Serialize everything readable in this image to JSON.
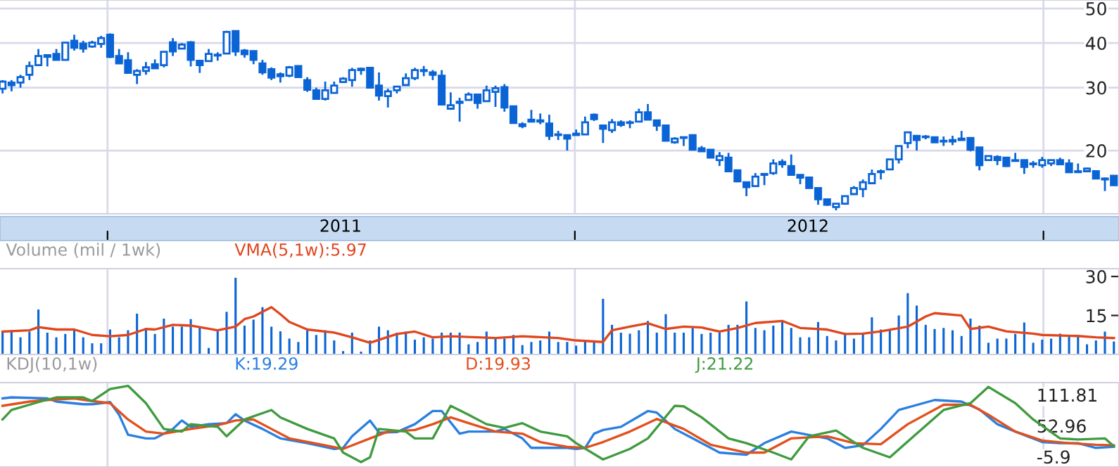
{
  "chart_data": [
    {
      "type": "candlestick",
      "color": "#0a64d6",
      "log": true,
      "grid": true,
      "xlim": [
        "2010-10-09",
        "2013-03-01"
      ],
      "ylim": [
        13.3,
        52.8
      ],
      "yticks": [
        20,
        30,
        40,
        50
      ],
      "xticks": [
        {
          "value": "2011-01-01",
          "label": null
        },
        {
          "value": "2011-07-02",
          "label": "2011"
        },
        {
          "value": "2012-01-01",
          "label": null
        },
        {
          "value": "2012-07-01",
          "label": "2012"
        },
        {
          "value": "2013-01-01",
          "label": null
        }
      ],
      "x": [
        "2010-10-11",
        "2010-10-18",
        "2010-10-25",
        "2010-11-01",
        "2010-11-08",
        "2010-11-15",
        "2010-11-22",
        "2010-11-29",
        "2010-12-06",
        "2010-12-13",
        "2010-12-20",
        "2010-12-27",
        "2011-01-03",
        "2011-01-10",
        "2011-01-17",
        "2011-01-24",
        "2011-01-31",
        "2011-02-07",
        "2011-02-14",
        "2011-02-21",
        "2011-02-28",
        "2011-03-07",
        "2011-03-14",
        "2011-03-21",
        "2011-03-28",
        "2011-04-04",
        "2011-04-11",
        "2011-04-18",
        "2011-04-25",
        "2011-05-02",
        "2011-05-09",
        "2011-05-16",
        "2011-05-23",
        "2011-05-30",
        "2011-06-06",
        "2011-06-13",
        "2011-06-20",
        "2011-06-27",
        "2011-07-04",
        "2011-07-11",
        "2011-07-18",
        "2011-07-25",
        "2011-08-01",
        "2011-08-08",
        "2011-08-15",
        "2011-08-22",
        "2011-08-29",
        "2011-09-05",
        "2011-09-12",
        "2011-09-19",
        "2011-09-26",
        "2011-10-03",
        "2011-10-10",
        "2011-10-17",
        "2011-10-24",
        "2011-10-31",
        "2011-11-07",
        "2011-11-14",
        "2011-11-21",
        "2011-11-28",
        "2011-12-05",
        "2011-12-12",
        "2011-12-19",
        "2011-12-26",
        "2012-01-02",
        "2012-01-09",
        "2012-01-16",
        "2012-01-23",
        "2012-01-30",
        "2012-02-06",
        "2012-02-13",
        "2012-02-20",
        "2012-02-27",
        "2012-03-05",
        "2012-03-12",
        "2012-03-19",
        "2012-03-26",
        "2012-04-02",
        "2012-04-09",
        "2012-04-16",
        "2012-04-23",
        "2012-04-30",
        "2012-05-07",
        "2012-05-14",
        "2012-05-21",
        "2012-05-28",
        "2012-06-04",
        "2012-06-11",
        "2012-06-18",
        "2012-06-25",
        "2012-07-02",
        "2012-07-09",
        "2012-07-16",
        "2012-07-23",
        "2012-07-30",
        "2012-08-06",
        "2012-08-13",
        "2012-08-20",
        "2012-08-27",
        "2012-09-03",
        "2012-09-10",
        "2012-09-17",
        "2012-09-24",
        "2012-10-01",
        "2012-10-08",
        "2012-10-15",
        "2012-10-22",
        "2012-10-29",
        "2012-11-05",
        "2012-11-12",
        "2012-11-19",
        "2012-11-26",
        "2012-12-03",
        "2012-12-10",
        "2012-12-17",
        "2012-12-24",
        "2012-12-31",
        "2013-01-07",
        "2013-01-14",
        "2013-01-21",
        "2013-01-28",
        "2013-02-04",
        "2013-02-11",
        "2013-02-18",
        "2013-02-25"
      ],
      "ohlc": [
        [
          29.8,
          31.5,
          28.9,
          31.2
        ],
        [
          31.0,
          31.5,
          29.3,
          30.5
        ],
        [
          31.0,
          32.6,
          30.0,
          32.1
        ],
        [
          32.6,
          35.5,
          31.5,
          34.5
        ],
        [
          34.7,
          38.5,
          34.7,
          36.8
        ],
        [
          37.0,
          37.0,
          34.4,
          36.6
        ],
        [
          37.3,
          38.5,
          35.9,
          35.9
        ],
        [
          35.9,
          40.1,
          35.9,
          40.1
        ],
        [
          40.6,
          42.2,
          38.1,
          38.8
        ],
        [
          39.9,
          40.6,
          37.6,
          38.6
        ],
        [
          39.1,
          40.6,
          38.8,
          40.1
        ],
        [
          39.8,
          41.9,
          38.8,
          41.3
        ],
        [
          42.2,
          42.6,
          36.3,
          36.6
        ],
        [
          36.8,
          38.5,
          35.1,
          35.1
        ],
        [
          35.8,
          37.7,
          33.0,
          33.0
        ],
        [
          32.6,
          33.8,
          30.7,
          33.4
        ],
        [
          33.4,
          35.4,
          32.6,
          34.2
        ],
        [
          34.9,
          36.0,
          34.0,
          34.0
        ],
        [
          34.7,
          37.8,
          34.2,
          37.8
        ],
        [
          40.2,
          41.3,
          36.8,
          37.9
        ],
        [
          38.6,
          40.0,
          38.6,
          39.6
        ],
        [
          40.2,
          40.5,
          34.4,
          35.9
        ],
        [
          35.7,
          35.9,
          33.0,
          34.7
        ],
        [
          35.6,
          38.5,
          35.6,
          37.3
        ],
        [
          36.9,
          37.7,
          35.7,
          37.1
        ],
        [
          37.4,
          43.3,
          37.4,
          43.0
        ],
        [
          43.2,
          43.2,
          36.8,
          37.9
        ],
        [
          38.1,
          38.5,
          36.4,
          37.2
        ],
        [
          38.0,
          38.0,
          34.9,
          35.9
        ],
        [
          35.1,
          35.9,
          32.6,
          33.1
        ],
        [
          33.8,
          34.2,
          31.5,
          32.0
        ],
        [
          32.7,
          33.1,
          31.0,
          32.3
        ],
        [
          32.4,
          34.5,
          32.1,
          34.2
        ],
        [
          34.5,
          34.5,
          32.1,
          32.1
        ],
        [
          31.5,
          32.1,
          29.2,
          29.6
        ],
        [
          29.5,
          30.0,
          27.9,
          27.9
        ],
        [
          27.9,
          31.2,
          27.6,
          29.5
        ],
        [
          29.0,
          31.2,
          29.0,
          30.4
        ],
        [
          31.1,
          32.1,
          30.9,
          31.8
        ],
        [
          31.5,
          34.1,
          30.2,
          33.6
        ],
        [
          33.6,
          34.1,
          32.6,
          33.9
        ],
        [
          34.1,
          34.1,
          30.0,
          30.0
        ],
        [
          30.4,
          33.1,
          27.6,
          28.5
        ],
        [
          28.4,
          29.8,
          26.4,
          29.3
        ],
        [
          29.5,
          30.2,
          28.9,
          30.2
        ],
        [
          30.5,
          32.9,
          30.5,
          31.9
        ],
        [
          31.9,
          34.1,
          31.5,
          33.6
        ],
        [
          33.4,
          34.5,
          32.3,
          33.6
        ],
        [
          33.1,
          33.6,
          31.5,
          32.6
        ],
        [
          32.4,
          33.6,
          26.9,
          26.9
        ],
        [
          26.2,
          29.1,
          26.0,
          26.8
        ],
        [
          27.4,
          28.1,
          24.1,
          27.2
        ],
        [
          27.7,
          29.1,
          27.7,
          28.7
        ],
        [
          28.7,
          28.7,
          26.2,
          27.2
        ],
        [
          27.5,
          30.4,
          27.5,
          29.5
        ],
        [
          29.2,
          30.4,
          26.5,
          29.9
        ],
        [
          30.1,
          30.7,
          25.7,
          26.4
        ],
        [
          26.6,
          26.6,
          23.9,
          23.9
        ],
        [
          23.7,
          24.0,
          23.1,
          23.4
        ],
        [
          24.4,
          26.0,
          24.0,
          24.1
        ],
        [
          24.3,
          25.4,
          23.7,
          24.1
        ],
        [
          23.8,
          25.2,
          21.4,
          22.0
        ],
        [
          22.1,
          22.7,
          21.4,
          22.2
        ],
        [
          22.1,
          22.1,
          20.0,
          21.6
        ],
        [
          22.1,
          22.9,
          22.1,
          22.3
        ],
        [
          22.2,
          24.9,
          22.2,
          24.0
        ],
        [
          25.2,
          25.4,
          24.2,
          24.5
        ],
        [
          23.5,
          23.5,
          21.0,
          23.0
        ],
        [
          22.8,
          24.5,
          22.4,
          24.0
        ],
        [
          24.0,
          24.3,
          23.3,
          23.6
        ],
        [
          24.0,
          24.3,
          23.1,
          23.9
        ],
        [
          24.1,
          26.2,
          24.1,
          25.6
        ],
        [
          25.6,
          27.0,
          24.3,
          24.4
        ],
        [
          24.3,
          24.3,
          22.7,
          23.5
        ],
        [
          23.5,
          23.5,
          21.3,
          21.3
        ],
        [
          21.1,
          21.8,
          20.9,
          21.6
        ],
        [
          21.8,
          21.8,
          20.6,
          21.7
        ],
        [
          22.1,
          22.1,
          20.1,
          20.1
        ],
        [
          20.3,
          20.6,
          19.9,
          19.9
        ],
        [
          20.1,
          20.1,
          19.1,
          19.1
        ],
        [
          18.8,
          19.8,
          18.1,
          19.3
        ],
        [
          19.1,
          19.7,
          17.4,
          17.5
        ],
        [
          17.6,
          17.6,
          16.3,
          16.4
        ],
        [
          16.3,
          16.3,
          14.9,
          15.8
        ],
        [
          15.9,
          17.3,
          15.9,
          16.9
        ],
        [
          17.1,
          17.3,
          16.0,
          17.2
        ],
        [
          17.3,
          18.9,
          17.1,
          18.4
        ],
        [
          18.6,
          18.9,
          17.9,
          18.3
        ],
        [
          18.1,
          19.5,
          17.1,
          17.1
        ],
        [
          17.1,
          17.1,
          16.1,
          16.8
        ],
        [
          16.8,
          16.9,
          15.7,
          15.7
        ],
        [
          15.7,
          15.7,
          14.1,
          14.6
        ],
        [
          14.6,
          14.6,
          14.0,
          14.1
        ],
        [
          13.9,
          14.2,
          13.6,
          14.2
        ],
        [
          14.2,
          14.9,
          14.1,
          14.9
        ],
        [
          15.1,
          15.9,
          15.1,
          15.7
        ],
        [
          15.6,
          16.6,
          14.8,
          16.3
        ],
        [
          16.2,
          17.7,
          16.2,
          17.2
        ],
        [
          17.4,
          17.7,
          16.6,
          17.5
        ],
        [
          17.7,
          18.9,
          17.7,
          18.9
        ],
        [
          18.9,
          20.6,
          18.4,
          20.6
        ],
        [
          21.0,
          22.5,
          20.3,
          22.5
        ],
        [
          22.0,
          22.0,
          20.0,
          21.4
        ],
        [
          21.9,
          22.1,
          21.5,
          21.8
        ],
        [
          21.8,
          21.8,
          21.1,
          21.1
        ],
        [
          21.3,
          21.9,
          20.6,
          21.2
        ],
        [
          21.2,
          22.0,
          20.7,
          21.4
        ],
        [
          21.4,
          22.7,
          21.4,
          21.6
        ],
        [
          21.7,
          21.8,
          19.9,
          20.1
        ],
        [
          20.4,
          20.4,
          17.6,
          18.2
        ],
        [
          18.8,
          19.3,
          18.7,
          19.3
        ],
        [
          19.2,
          19.4,
          18.2,
          18.8
        ],
        [
          19.1,
          19.1,
          18.0,
          18.1
        ],
        [
          18.8,
          19.7,
          18.7,
          18.7
        ],
        [
          18.8,
          18.8,
          17.2,
          18.0
        ],
        [
          18.3,
          18.7,
          17.9,
          18.4
        ],
        [
          18.2,
          19.2,
          17.9,
          18.8
        ],
        [
          18.4,
          18.8,
          18.1,
          18.8
        ],
        [
          18.8,
          19.1,
          18.3,
          18.3
        ],
        [
          18.4,
          18.9,
          17.4,
          17.4
        ],
        [
          17.5,
          18.4,
          17.3,
          17.4
        ],
        [
          17.5,
          17.9,
          17.4,
          17.8
        ],
        [
          17.5,
          17.5,
          16.7,
          16.7
        ],
        [
          16.7,
          16.8,
          15.4,
          16.6
        ],
        [
          17.0,
          17.0,
          16.0,
          16.0
        ]
      ]
    },
    {
      "type": "bar",
      "title": "Volume (mil / 1wk)",
      "grid": "x",
      "tick_labels": "y",
      "xlim": [
        "2010-10-09",
        "2013-03-01"
      ],
      "ylim": [
        0,
        33
      ],
      "yticks": [
        30,
        15
      ],
      "xticks": [
        {
          "value": "2011-01-01",
          "label": null
        },
        {
          "value": "2012-01-01",
          "label": null
        },
        {
          "value": "2013-01-01",
          "label": null
        }
      ],
      "x": [
        "2010-10-11",
        "2010-10-18",
        "2010-10-25",
        "2010-11-01",
        "2010-11-08",
        "2010-11-15",
        "2010-11-22",
        "2010-11-29",
        "2010-12-06",
        "2010-12-13",
        "2010-12-20",
        "2010-12-27",
        "2011-01-03",
        "2011-01-10",
        "2011-01-17",
        "2011-01-24",
        "2011-01-31",
        "2011-02-07",
        "2011-02-14",
        "2011-02-21",
        "2011-02-28",
        "2011-03-07",
        "2011-03-14",
        "2011-03-21",
        "2011-03-28",
        "2011-04-04",
        "2011-04-11",
        "2011-04-18",
        "2011-04-25",
        "2011-05-02",
        "2011-05-09",
        "2011-05-16",
        "2011-05-23",
        "2011-05-30",
        "2011-06-06",
        "2011-06-13",
        "2011-06-20",
        "2011-06-27",
        "2011-07-04",
        "2011-07-11",
        "2011-07-18",
        "2011-07-25",
        "2011-08-01",
        "2011-08-08",
        "2011-08-15",
        "2011-08-22",
        "2011-08-29",
        "2011-09-05",
        "2011-09-12",
        "2011-09-19",
        "2011-09-26",
        "2011-10-03",
        "2011-10-10",
        "2011-10-17",
        "2011-10-24",
        "2011-10-31",
        "2011-11-07",
        "2011-11-14",
        "2011-11-21",
        "2011-11-28",
        "2011-12-05",
        "2011-12-12",
        "2011-12-19",
        "2011-12-26",
        "2012-01-02",
        "2012-01-09",
        "2012-01-16",
        "2012-01-23",
        "2012-01-30",
        "2012-02-06",
        "2012-02-13",
        "2012-02-20",
        "2012-02-27",
        "2012-03-05",
        "2012-03-12",
        "2012-03-19",
        "2012-03-26",
        "2012-04-02",
        "2012-04-09",
        "2012-04-16",
        "2012-04-23",
        "2012-04-30",
        "2012-05-07",
        "2012-05-14",
        "2012-05-21",
        "2012-05-28",
        "2012-06-04",
        "2012-06-11",
        "2012-06-18",
        "2012-06-25",
        "2012-07-02",
        "2012-07-09",
        "2012-07-16",
        "2012-07-23",
        "2012-07-30",
        "2012-08-06",
        "2012-08-13",
        "2012-08-20",
        "2012-08-27",
        "2012-09-03",
        "2012-09-10",
        "2012-09-17",
        "2012-09-24",
        "2012-10-01",
        "2012-10-08",
        "2012-10-15",
        "2012-10-22",
        "2012-10-29",
        "2012-11-05",
        "2012-11-12",
        "2012-11-19",
        "2012-11-26",
        "2012-12-03",
        "2012-12-10",
        "2012-12-17",
        "2012-12-24",
        "2012-12-31",
        "2013-01-07",
        "2013-01-14",
        "2013-01-21",
        "2013-01-28",
        "2013-02-04",
        "2013-02-11",
        "2013-02-18",
        "2013-02-25"
      ],
      "series": [
        {
          "type": "bar",
          "color": "#0a64d6",
          "values": [
            8.8,
            9.3,
            6.6,
            8.8,
            17.3,
            8.4,
            6.6,
            7.9,
            9.3,
            6.6,
            4.3,
            4.3,
            9.6,
            6.6,
            9.3,
            15.7,
            10.2,
            7.9,
            13.8,
            10.7,
            10.7,
            13.6,
            10.7,
            2.5,
            9.6,
            16.4,
            29.5,
            11.1,
            13.4,
            18.2,
            10.7,
            8.9,
            6.1,
            4.8,
            9.3,
            7.5,
            9.3,
            5.4,
            1.3,
            8.4,
            1.1,
            5.4,
            10.7,
            9.3,
            8.4,
            8.8,
            5.7,
            6.6,
            6.1,
            8.4,
            8.4,
            8.4,
            3.9,
            4.8,
            8.8,
            6.1,
            6.1,
            7.5,
            3.6,
            4.8,
            5.4,
            8.8,
            4.8,
            4.8,
            3.4,
            5.2,
            5.2,
            21.4,
            11.4,
            8.4,
            8.0,
            9.3,
            12.9,
            8.4,
            15.5,
            8.4,
            8.4,
            10.2,
            7.9,
            8.4,
            8.4,
            11.4,
            11.4,
            20.4,
            10.2,
            9.3,
            11.1,
            13.2,
            10.2,
            6.6,
            6.6,
            12.5,
            7.1,
            5.4,
            8.4,
            6.1,
            8.4,
            14.3,
            9.6,
            9.6,
            15.0,
            23.6,
            18.8,
            11.4,
            9.8,
            10.2,
            9.3,
            7.1,
            13.8,
            11.1,
            4.5,
            6.1,
            6.1,
            7.9,
            12.3,
            4.5,
            5.7,
            6.1,
            8.0,
            7.5,
            7.1,
            3.9,
            5.4,
            8.8,
            5.0
          ]
        },
        {
          "type": "line",
          "name": "VMA(5,1w):5.97",
          "color": "#e0461e",
          "x": [
            "2010-10-11",
            "2010-11-01",
            "2010-11-08",
            "2010-11-22",
            "2010-12-06",
            "2010-12-20",
            "2011-01-03",
            "2011-01-17",
            "2011-01-31",
            "2011-02-07",
            "2011-02-21",
            "2011-03-07",
            "2011-03-14",
            "2011-03-28",
            "2011-04-11",
            "2011-04-18",
            "2011-04-25",
            "2011-05-09",
            "2011-05-16",
            "2011-05-23",
            "2011-06-06",
            "2011-06-27",
            "2011-07-11",
            "2011-07-25",
            "2011-08-15",
            "2011-08-29",
            "2011-09-12",
            "2011-09-26",
            "2011-10-31",
            "2011-11-21",
            "2011-12-19",
            "2012-01-02",
            "2012-01-23",
            "2012-01-30",
            "2012-02-13",
            "2012-02-27",
            "2012-03-12",
            "2012-03-26",
            "2012-04-09",
            "2012-04-23",
            "2012-05-07",
            "2012-05-21",
            "2012-06-11",
            "2012-06-25",
            "2012-07-16",
            "2012-07-30",
            "2012-08-13",
            "2012-08-27",
            "2012-09-17",
            "2012-10-01",
            "2012-10-08",
            "2012-10-29",
            "2012-11-05",
            "2012-11-19",
            "2012-12-03",
            "2012-12-24",
            "2012-12-31",
            "2013-01-28",
            "2013-02-11",
            "2013-02-25"
          ],
          "values": [
            8.8,
            9.3,
            10.5,
            9.6,
            9.6,
            7.5,
            7.0,
            7.5,
            9.8,
            9.6,
            11.4,
            11.1,
            10.5,
            9.3,
            10.7,
            13.6,
            14.6,
            18.2,
            15.5,
            12.5,
            9.6,
            8.4,
            6.6,
            4.5,
            7.9,
            8.8,
            6.6,
            7.0,
            6.3,
            7.0,
            6.3,
            5.4,
            4.8,
            9.3,
            10.7,
            12.0,
            9.8,
            10.7,
            10.4,
            8.8,
            10.2,
            12.1,
            12.9,
            10.2,
            9.6,
            7.9,
            8.0,
            8.9,
            10.7,
            14.6,
            15.9,
            15.0,
            9.8,
            10.7,
            8.9,
            8.0,
            7.5,
            7.1,
            6.6,
            6.3
          ]
        }
      ]
    },
    {
      "type": "line",
      "title": "KDJ(10,1w)",
      "grid": "x",
      "tick_labels": "y",
      "xlim": [
        "2010-10-09",
        "2013-03-01"
      ],
      "ylim": [
        -25.4,
        135.1
      ],
      "yticks": [
        111.81,
        52.96,
        -5.9
      ],
      "xticks": [
        {
          "value": "2011-01-01",
          "label": null
        },
        {
          "value": "2012-01-01",
          "label": null
        },
        {
          "value": "2013-01-01",
          "label": null
        }
      ],
      "series": [
        {
          "name": "K:19.29",
          "color": "#2a7fe0",
          "x": [
            "2010-10-11",
            "2010-10-18",
            "2010-11-15",
            "2010-11-22",
            "2010-12-13",
            "2010-12-20",
            "2011-01-03",
            "2011-01-10",
            "2011-01-17",
            "2011-01-31",
            "2011-02-07",
            "2011-02-21",
            "2011-02-28",
            "2011-03-07",
            "2011-03-21",
            "2011-04-04",
            "2011-04-11",
            "2011-04-18",
            "2011-05-02",
            "2011-05-16",
            "2011-06-06",
            "2011-06-27",
            "2011-07-04",
            "2011-07-11",
            "2011-07-25",
            "2011-08-01",
            "2011-08-15",
            "2011-08-29",
            "2011-09-12",
            "2011-09-19",
            "2011-10-03",
            "2011-10-10",
            "2011-10-31",
            "2011-11-07",
            "2011-11-21",
            "2011-11-28",
            "2011-12-26",
            "2012-01-02",
            "2012-01-09",
            "2012-01-16",
            "2012-01-23",
            "2012-02-06",
            "2012-02-27",
            "2012-03-05",
            "2012-03-19",
            "2012-04-02",
            "2012-04-23",
            "2012-05-14",
            "2012-05-28",
            "2012-06-18",
            "2012-07-16",
            "2012-07-30",
            "2012-08-13",
            "2012-08-27",
            "2012-09-10",
            "2012-10-08",
            "2012-10-29",
            "2012-11-12",
            "2012-11-26",
            "2012-12-10",
            "2012-12-31",
            "2013-01-14",
            "2013-01-28",
            "2013-02-11",
            "2013-02-25"
          ],
          "values": [
            105,
            107,
            105,
            99,
            94,
            94,
            98,
            74,
            36,
            29,
            29,
            47,
            63,
            51,
            56,
            58,
            75,
            63,
            47,
            29,
            20,
            9,
            11,
            33,
            63,
            40,
            41,
            56,
            81,
            81,
            38,
            42,
            42,
            47,
            29,
            11,
            11,
            9,
            11,
            38,
            45,
            51,
            81,
            78,
            47,
            29,
            2,
            -2,
            20,
            42,
            29,
            11,
            16,
            47,
            83,
            102,
            99,
            84,
            56,
            42,
            22,
            20,
            20,
            11,
            13
          ]
        },
        {
          "name": "D:19.93",
          "color": "#e2501c",
          "x": [
            "2010-10-11",
            "2010-11-01",
            "2010-11-15",
            "2010-12-06",
            "2010-12-20",
            "2011-01-03",
            "2011-01-17",
            "2011-01-31",
            "2011-02-14",
            "2011-03-07",
            "2011-03-28",
            "2011-04-11",
            "2011-04-25",
            "2011-05-09",
            "2011-05-23",
            "2011-06-20",
            "2011-07-04",
            "2011-07-25",
            "2011-08-08",
            "2011-08-29",
            "2011-09-12",
            "2011-09-26",
            "2011-10-10",
            "2011-10-31",
            "2011-11-21",
            "2011-12-05",
            "2011-12-26",
            "2012-01-09",
            "2012-01-23",
            "2012-02-13",
            "2012-03-05",
            "2012-03-26",
            "2012-04-16",
            "2012-05-14",
            "2012-05-28",
            "2012-06-18",
            "2012-07-16",
            "2012-08-06",
            "2012-08-27",
            "2012-09-17",
            "2012-10-15",
            "2012-11-05",
            "2012-11-19",
            "2012-12-10",
            "2012-12-31",
            "2013-01-21",
            "2013-02-11",
            "2013-02-25"
          ],
          "values": [
            91,
            99,
            102,
            105,
            100,
            96,
            65,
            42,
            38,
            47,
            54,
            63,
            65,
            47,
            29,
            16,
            9,
            29,
            42,
            45,
            56,
            69,
            58,
            42,
            38,
            22,
            13,
            11,
            22,
            42,
            66,
            47,
            17,
            2,
            2,
            29,
            33,
            20,
            18,
            56,
            93,
            93,
            74,
            42,
            25,
            20,
            17,
            16
          ]
        },
        {
          "name": "J:21.22",
          "color": "#3f9b3f",
          "x": [
            "2010-10-11",
            "2010-10-18",
            "2010-11-08",
            "2010-11-22",
            "2010-12-13",
            "2010-12-20",
            "2011-01-03",
            "2011-01-17",
            "2011-01-31",
            "2011-02-14",
            "2011-02-28",
            "2011-03-07",
            "2011-03-28",
            "2011-04-04",
            "2011-04-18",
            "2011-05-09",
            "2011-05-16",
            "2011-06-06",
            "2011-06-27",
            "2011-07-04",
            "2011-07-18",
            "2011-07-25",
            "2011-08-01",
            "2011-08-22",
            "2011-08-29",
            "2011-09-12",
            "2011-09-26",
            "2011-10-10",
            "2011-10-24",
            "2011-11-07",
            "2011-11-21",
            "2011-12-05",
            "2011-12-26",
            "2012-01-02",
            "2012-01-23",
            "2012-02-13",
            "2012-02-27",
            "2012-03-19",
            "2012-03-26",
            "2012-04-09",
            "2012-04-30",
            "2012-05-14",
            "2012-06-04",
            "2012-06-18",
            "2012-07-02",
            "2012-07-23",
            "2012-08-13",
            "2012-09-03",
            "2012-09-24",
            "2012-10-15",
            "2012-11-05",
            "2012-11-19",
            "2012-12-10",
            "2012-12-24",
            "2013-01-14",
            "2013-01-28",
            "2013-02-18",
            "2013-02-25"
          ],
          "values": [
            65,
            83,
            98,
            107,
            107,
            100,
            123,
            129,
            96,
            47,
            42,
            56,
            51,
            33,
            65,
            83,
            69,
            47,
            29,
            2,
            -16,
            -7,
            47,
            42,
            29,
            29,
            91,
            74,
            56,
            49,
            58,
            42,
            33,
            20,
            -11,
            9,
            29,
            91,
            90,
            69,
            29,
            20,
            2,
            -11,
            33,
            44,
            11,
            -7,
            38,
            83,
            96,
            127,
            96,
            65,
            29,
            27,
            29,
            14
          ]
        }
      ]
    }
  ]
}
